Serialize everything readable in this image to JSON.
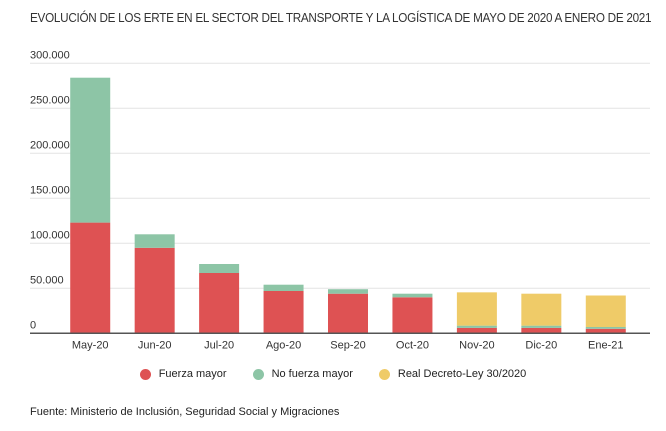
{
  "chart_data": {
    "type": "bar",
    "stacked": true,
    "title": "EVOLUCIÓN DE LOS ERTE EN EL SECTOR DEL TRANSPORTE Y LA LOGÍSTICA DE MAYO DE 2020 A ENERO DE 2021",
    "categories": [
      "May-20",
      "Jun-20",
      "Jul-20",
      "Ago-20",
      "Sep-20",
      "Oct-20",
      "Nov-20",
      "Dic-20",
      "Ene-21"
    ],
    "series": [
      {
        "name": "Fuerza mayor",
        "color": "#de5253",
        "values": [
          123000,
          95000,
          67000,
          47000,
          44000,
          40000,
          6000,
          6000,
          5000
        ]
      },
      {
        "name": "No fuerza mayor",
        "color": "#8dc5a6",
        "values": [
          161000,
          15000,
          10000,
          7000,
          5000,
          4000,
          2500,
          2500,
          2000
        ]
      },
      {
        "name": "Real Decreto-Ley 30/2020",
        "color": "#efcb68",
        "values": [
          0,
          0,
          0,
          0,
          0,
          0,
          37000,
          35500,
          35000
        ]
      }
    ],
    "ylim": [
      0,
      300000
    ],
    "yticks": [
      0,
      50000,
      100000,
      150000,
      200000,
      250000,
      300000
    ],
    "ytick_labels": [
      "0",
      "50.000",
      "100.000",
      "150.000",
      "200.000",
      "250.000",
      "300.000"
    ],
    "grid": true,
    "legend_position": "bottom"
  },
  "source": "Fuente: Ministerio de Inclusión, Seguridad Social y Migraciones"
}
